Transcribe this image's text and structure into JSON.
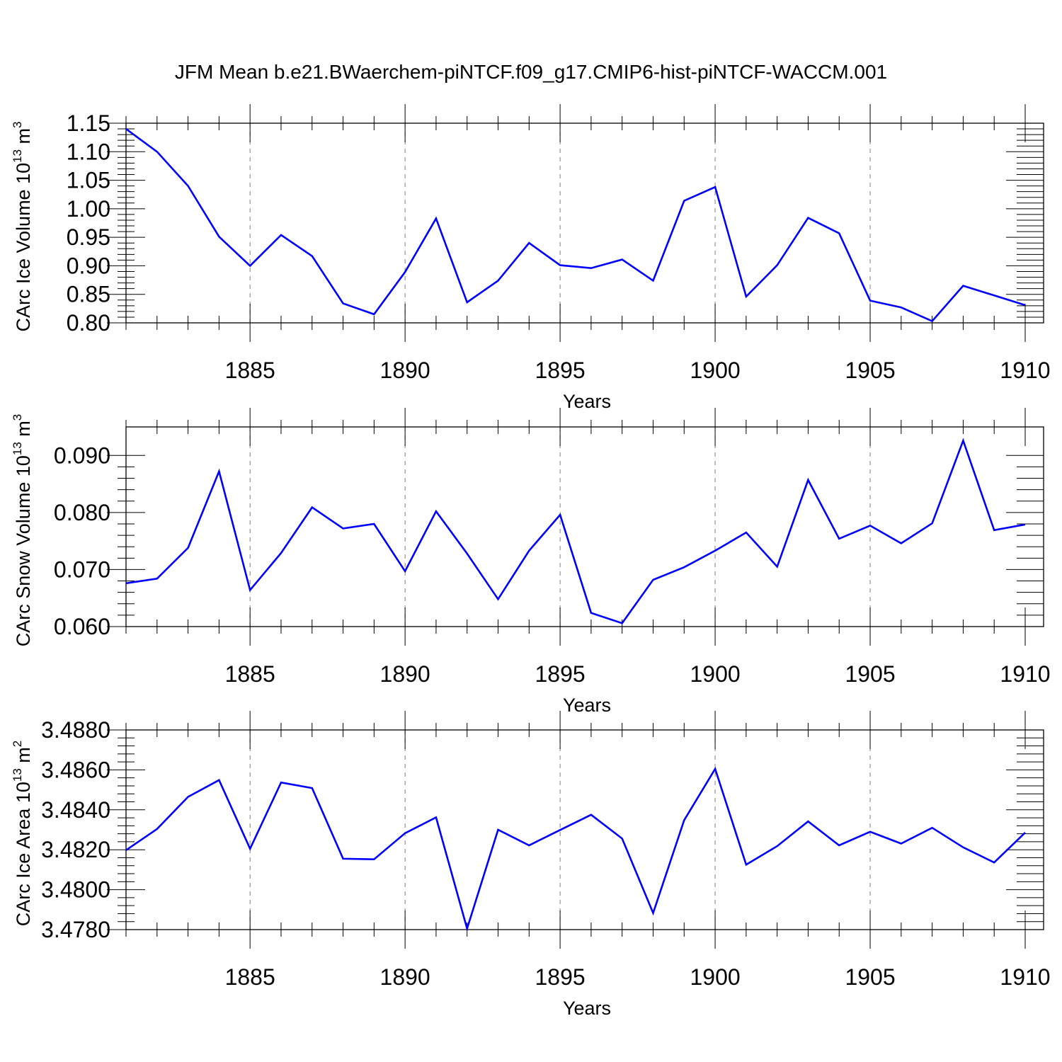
{
  "title": "JFM Mean b.e21.BWaerchem-piNTCF.f09_g17.CMIP6-hist-piNTCF-WACCM.001",
  "colors": {
    "line": "#0000ff",
    "axis": "#000000",
    "grid": "#808080"
  },
  "chart_data": [
    {
      "type": "line",
      "xlabel": "Years",
      "ylabel": {
        "main": "CArc Ice Volume 10",
        "exp": "13",
        "unit_base": " m",
        "unit_exp": "3"
      },
      "xlim": [
        1881,
        1910
      ],
      "ylim": [
        0.8,
        1.15
      ],
      "xticks": [
        1885,
        1890,
        1895,
        1900,
        1905,
        1910
      ],
      "yticks": [
        0.8,
        0.85,
        0.9,
        0.95,
        1.0,
        1.05,
        1.1,
        1.15
      ],
      "ytick_labels": [
        "0.80",
        "0.85",
        "0.90",
        "0.95",
        "1.00",
        "1.05",
        "1.10",
        "1.15"
      ],
      "grid": "vertical dashed at major x ticks",
      "x": [
        1881,
        1882,
        1883,
        1884,
        1885,
        1886,
        1887,
        1888,
        1889,
        1890,
        1891,
        1892,
        1893,
        1894,
        1895,
        1896,
        1897,
        1898,
        1899,
        1900,
        1901,
        1902,
        1903,
        1904,
        1905,
        1906,
        1907,
        1908,
        1909,
        1910
      ],
      "y": [
        1.14,
        1.1,
        1.04,
        0.951,
        0.9,
        0.954,
        0.917,
        0.834,
        0.815,
        0.889,
        0.983,
        0.836,
        0.874,
        0.94,
        0.901,
        0.896,
        0.911,
        0.874,
        1.014,
        1.038,
        0.846,
        0.901,
        0.984,
        0.957,
        0.839,
        0.827,
        0.803,
        0.865,
        0.848,
        0.831
      ]
    },
    {
      "type": "line",
      "xlabel": "Years",
      "ylabel": {
        "main": "CArc Snow Volume 10",
        "exp": "13",
        "unit_base": " m",
        "unit_exp": "3"
      },
      "xlim": [
        1881,
        1910
      ],
      "ylim": [
        0.06,
        0.095
      ],
      "xticks": [
        1885,
        1890,
        1895,
        1900,
        1905,
        1910
      ],
      "yticks": [
        0.06,
        0.07,
        0.08,
        0.09
      ],
      "ytick_labels": [
        "0.060",
        "0.070",
        "0.080",
        "0.090"
      ],
      "grid": "vertical dashed at major x ticks",
      "x": [
        1881,
        1882,
        1883,
        1884,
        1885,
        1886,
        1887,
        1888,
        1889,
        1890,
        1891,
        1892,
        1893,
        1894,
        1895,
        1896,
        1897,
        1898,
        1899,
        1900,
        1901,
        1902,
        1903,
        1904,
        1905,
        1906,
        1907,
        1908,
        1909,
        1910
      ],
      "y": [
        0.0676,
        0.0684,
        0.0738,
        0.0872,
        0.0664,
        0.0729,
        0.0809,
        0.0772,
        0.078,
        0.0697,
        0.0802,
        0.0728,
        0.0648,
        0.0733,
        0.0796,
        0.0624,
        0.0606,
        0.0682,
        0.0704,
        0.0733,
        0.0765,
        0.0705,
        0.0857,
        0.0754,
        0.0777,
        0.0746,
        0.0781,
        0.0926,
        0.0769,
        0.0779
      ]
    },
    {
      "type": "line",
      "xlabel": "Years",
      "ylabel": {
        "main": "CArc Ice Area 10",
        "exp": "13",
        "unit_base": " m",
        "unit_exp": "2"
      },
      "xlim": [
        1881,
        1910
      ],
      "ylim": [
        3.478,
        3.488
      ],
      "xticks": [
        1885,
        1890,
        1895,
        1900,
        1905,
        1910
      ],
      "yticks": [
        3.478,
        3.48,
        3.482,
        3.484,
        3.486,
        3.488
      ],
      "ytick_labels": [
        "3.4780",
        "3.4800",
        "3.4820",
        "3.4840",
        "3.4860",
        "3.4880"
      ],
      "grid": "vertical dashed at major x ticks",
      "x": [
        1881,
        1882,
        1883,
        1884,
        1885,
        1886,
        1887,
        1888,
        1889,
        1890,
        1891,
        1892,
        1893,
        1894,
        1895,
        1896,
        1897,
        1898,
        1899,
        1900,
        1901,
        1902,
        1903,
        1904,
        1905,
        1906,
        1907,
        1908,
        1909,
        1910
      ],
      "y": [
        3.48198,
        3.48304,
        3.48465,
        3.48549,
        3.48205,
        3.48537,
        3.48509,
        3.48155,
        3.48152,
        3.48283,
        3.48362,
        3.47805,
        3.483,
        3.48222,
        3.48299,
        3.48375,
        3.48256,
        3.47883,
        3.48348,
        3.48605,
        3.48125,
        3.48218,
        3.48342,
        3.48222,
        3.4829,
        3.48231,
        3.4831,
        3.48212,
        3.48136,
        3.48286
      ]
    }
  ]
}
